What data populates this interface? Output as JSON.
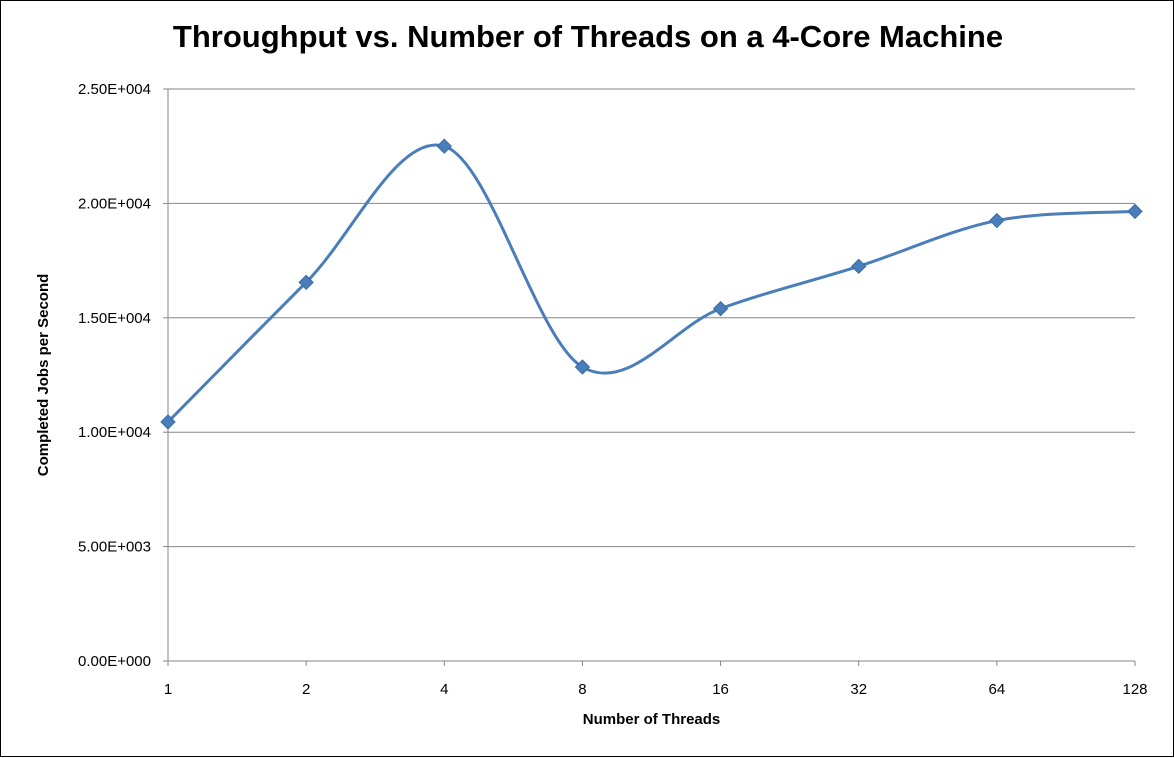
{
  "chart_data": {
    "type": "line",
    "title": "Throughput vs. Number of Threads on a 4-Core Machine",
    "xlabel": "Number of Threads",
    "ylabel": "Completed Jobs per Second",
    "categories": [
      "1",
      "2",
      "4",
      "8",
      "16",
      "32",
      "64",
      "128"
    ],
    "series": [
      {
        "values": [
          10450,
          16550,
          22500,
          12850,
          15400,
          17250,
          19250,
          19650
        ],
        "color": "#4A7EBB",
        "marker": "diamond",
        "smooth": true
      }
    ],
    "ylim": [
      0,
      25000
    ],
    "yticks": [
      0,
      5000,
      10000,
      15000,
      20000,
      25000
    ],
    "ytick_labels": [
      "0.00E+000",
      "5.00E+003",
      "1.00E+004",
      "1.50E+004",
      "2.00E+004",
      "2.50E+004"
    ],
    "grid": "horizontal",
    "legend": "none"
  }
}
